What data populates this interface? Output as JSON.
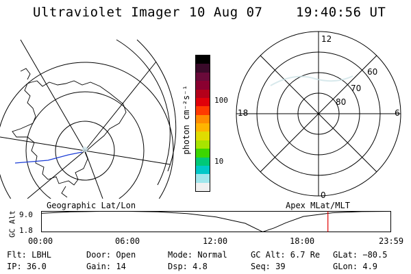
{
  "header": {
    "title": "Ultraviolet Imager",
    "date": "10 Aug 07",
    "time": "19:40:56 UT"
  },
  "colorbar": {
    "unit_label": "photon cm⁻²s⁻¹",
    "ticks": [
      "100",
      "10"
    ],
    "colors": [
      "#000000",
      "#3a0a2a",
      "#6a0a3a",
      "#8a0030",
      "#b4001a",
      "#e0000a",
      "#ff3a00",
      "#ff8c00",
      "#ffb400",
      "#e0dc00",
      "#a8e400",
      "#3cd600",
      "#00c878",
      "#00c8c8",
      "#a0e6ec",
      "#f0f0f0"
    ]
  },
  "polar_plot": {
    "hour_labels": [
      "12",
      "18",
      "6",
      "0"
    ],
    "lat_labels": [
      "60",
      "70",
      "80"
    ]
  },
  "timeline": {
    "left_title": "Geographic Lat/Lon",
    "right_title": "Apex  MLat/MLT",
    "y_axis_label": "GC Alt",
    "y_ticks": [
      "9.0",
      "1.8"
    ],
    "x_ticks": [
      "00:00",
      "06:00",
      "12:00",
      "18:00",
      "23:59"
    ],
    "marker_color": "#e00000"
  },
  "chart_data": {
    "type": "line",
    "xlabel": "",
    "ylabel": "GC Alt",
    "ylim": [
      1.8,
      9.0
    ],
    "x_ticks": [
      "00:00",
      "06:00",
      "12:00",
      "18:00",
      "23:59"
    ],
    "series": [
      {
        "x": [
          0,
          2,
          4,
          6,
          8,
          10,
          12,
          14,
          15.2,
          16,
          16.8,
          18,
          20,
          22,
          24
        ],
        "y": [
          8.3,
          8.8,
          9.0,
          9.0,
          8.8,
          8.2,
          7.0,
          4.8,
          1.8,
          3.2,
          5.0,
          7.2,
          8.5,
          8.9,
          9.0
        ]
      }
    ],
    "current_time_hours": 19.68
  },
  "status": {
    "col1": [
      "Flt: LBHL",
      "IP: 36.0"
    ],
    "col2": [
      "Door: Open",
      "Gain: 14"
    ],
    "col3": [
      "Mode: Normal",
      "Dsp:    4.8"
    ],
    "col4": [
      "GC Alt: 6.7 Re",
      "Seq: 39"
    ],
    "col5": [
      "GLat: −80.5",
      "GLon:   4.9"
    ]
  }
}
